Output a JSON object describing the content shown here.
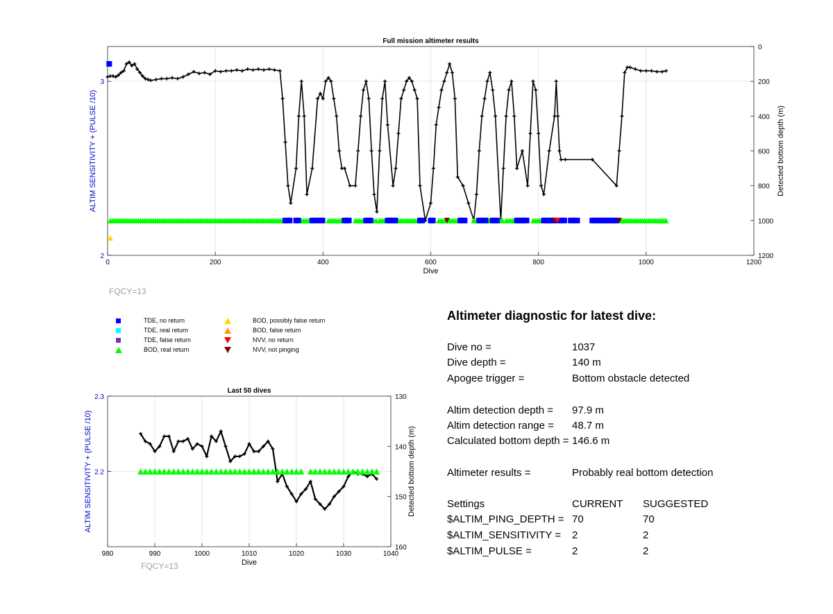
{
  "chart_data": [
    {
      "type": "scatter",
      "title": "Full mission altimeter results",
      "xlabel": "Dive",
      "ylabel_left": "ALTIM SENSITIVITY + (PULSE /10)",
      "ylabel_right": "Detected bottom depth (m)",
      "xlim": [
        0,
        1200
      ],
      "ylim_left": [
        2,
        3.2
      ],
      "ylim_right": [
        0,
        1200
      ],
      "right_axis_reversed": true,
      "xticks": [
        0,
        200,
        400,
        600,
        800,
        1000,
        1200
      ],
      "yticks_left": [
        2,
        3
      ],
      "yticks_right": [
        0,
        200,
        400,
        600,
        800,
        1000,
        1200
      ],
      "grid": true,
      "note": "FQCY=13",
      "series": [
        {
          "name": "Detected bottom depth",
          "axis": "right",
          "color": "#000000",
          "x": [
            0,
            5,
            10,
            15,
            20,
            25,
            30,
            35,
            40,
            45,
            50,
            55,
            60,
            65,
            70,
            75,
            80,
            90,
            100,
            110,
            120,
            130,
            140,
            150,
            160,
            170,
            180,
            190,
            200,
            210,
            220,
            230,
            240,
            250,
            260,
            270,
            280,
            290,
            300,
            310,
            320,
            325,
            330,
            335,
            340,
            350,
            355,
            360,
            365,
            370,
            380,
            390,
            395,
            400,
            405,
            410,
            415,
            420,
            425,
            430,
            435,
            440,
            450,
            460,
            465,
            470,
            475,
            480,
            485,
            490,
            495,
            500,
            505,
            510,
            515,
            520,
            530,
            535,
            540,
            545,
            550,
            555,
            560,
            565,
            570,
            575,
            580,
            590,
            600,
            605,
            610,
            615,
            620,
            625,
            630,
            635,
            640,
            645,
            650,
            660,
            670,
            680,
            685,
            690,
            695,
            700,
            705,
            710,
            715,
            720,
            730,
            735,
            740,
            745,
            750,
            755,
            760,
            770,
            780,
            785,
            790,
            795,
            800,
            805,
            810,
            820,
            830,
            833,
            836,
            839,
            842,
            850,
            900,
            945,
            950,
            955,
            960,
            965,
            970,
            980,
            990,
            1000,
            1010,
            1020,
            1030,
            1037
          ],
          "y": [
            175,
            170,
            170,
            175,
            165,
            150,
            140,
            100,
            90,
            110,
            100,
            130,
            150,
            170,
            185,
            190,
            195,
            190,
            185,
            185,
            180,
            185,
            175,
            160,
            145,
            155,
            150,
            160,
            140,
            145,
            140,
            140,
            135,
            140,
            130,
            135,
            130,
            135,
            130,
            135,
            140,
            300,
            550,
            800,
            900,
            700,
            400,
            200,
            400,
            850,
            700,
            300,
            270,
            300,
            200,
            180,
            200,
            300,
            400,
            600,
            700,
            700,
            800,
            800,
            600,
            400,
            250,
            200,
            300,
            600,
            850,
            950,
            600,
            300,
            200,
            450,
            800,
            700,
            500,
            300,
            250,
            200,
            180,
            200,
            250,
            300,
            800,
            1000,
            900,
            700,
            450,
            350,
            250,
            200,
            150,
            100,
            150,
            300,
            750,
            800,
            900,
            1000,
            850,
            600,
            400,
            300,
            200,
            150,
            250,
            400,
            1000,
            700,
            400,
            250,
            200,
            400,
            700,
            600,
            800,
            500,
            200,
            250,
            500,
            800,
            850,
            600,
            400,
            200,
            400,
            600,
            650,
            650,
            650,
            800,
            600,
            400,
            150,
            120,
            120,
            130,
            140,
            140,
            140,
            145,
            145,
            140
          ]
        },
        {
          "name": "BOD, real return",
          "axis": "left",
          "color": "#00ff00",
          "marker": "triangle",
          "x_ranges": [
            [
              5,
              330
            ],
            [
              355,
              375
            ],
            [
              410,
              440
            ],
            [
              460,
              480
            ],
            [
              495,
              500
            ],
            [
              505,
              515
            ],
            [
              540,
              580
            ],
            [
              600,
              605
            ],
            [
              615,
              655
            ],
            [
              680,
              690
            ],
            [
              705,
              710
            ],
            [
              725,
              735
            ],
            [
              740,
              760
            ],
            [
              790,
              805
            ],
            [
              825,
              840
            ],
            [
              945,
              1040
            ]
          ],
          "y": 2.2
        },
        {
          "name": "TDE, no return",
          "axis": "left",
          "color": "#0000ff",
          "marker": "square",
          "x_ranges": [
            [
              330,
              340
            ],
            [
              350,
              355
            ],
            [
              380,
              390
            ],
            [
              395,
              400
            ],
            [
              440,
              450
            ],
            [
              480,
              490
            ],
            [
              520,
              530
            ],
            [
              530,
              535
            ],
            [
              580,
              585
            ],
            [
              600,
              605
            ],
            [
              655,
              665
            ],
            [
              690,
              705
            ],
            [
              715,
              725
            ],
            [
              760,
              770
            ],
            [
              770,
              780
            ],
            [
              810,
              830
            ],
            [
              840,
              850
            ],
            [
              860,
              875
            ],
            [
              900,
              945
            ]
          ],
          "y": 2.2
        },
        {
          "name": "TDE, no return (start)",
          "axis": "left",
          "color": "#0000ff",
          "marker": "square",
          "x": [
            3
          ],
          "y": [
            3.1
          ]
        },
        {
          "name": "BOD, possibly false return",
          "axis": "left",
          "color": "#ffd700",
          "marker": "triangle",
          "x": [
            5
          ],
          "y": [
            2.1
          ]
        },
        {
          "name": "NVV, not pinging",
          "axis": "left",
          "color": "#800000",
          "marker": "triangle-down",
          "x": [
            630,
            830,
            950
          ],
          "y": [
            2.2,
            2.2,
            2.2
          ]
        },
        {
          "name": "NVV, no return",
          "axis": "left",
          "color": "#ff0000",
          "marker": "triangle-down",
          "x": [
            835
          ],
          "y": [
            2.2
          ]
        }
      ]
    },
    {
      "type": "scatter",
      "title": "Last 50 dives",
      "xlabel": "Dive",
      "ylabel_left": "ALTIM SENSITIVITY + (PULSE /10)",
      "ylabel_right": "Detected bottom depth (m)",
      "xlim": [
        980,
        1040
      ],
      "ylim_left": [
        2.1,
        2.3
      ],
      "ylim_right": [
        130,
        160
      ],
      "right_axis_reversed": true,
      "xticks": [
        980,
        990,
        1000,
        1010,
        1020,
        1030,
        1040
      ],
      "yticks_left": [
        2.2,
        2.3
      ],
      "yticks_right": [
        130,
        140,
        150,
        160
      ],
      "grid": true,
      "note": "FQCY=13",
      "series": [
        {
          "name": "Detected bottom depth",
          "axis": "right",
          "color": "#000000",
          "x": [
            987,
            988,
            989,
            990,
            991,
            992,
            993,
            994,
            995,
            996,
            997,
            998,
            999,
            1000,
            1001,
            1002,
            1003,
            1004,
            1005,
            1006,
            1007,
            1008,
            1009,
            1010,
            1011,
            1012,
            1013,
            1014,
            1015,
            1016,
            1017,
            1018,
            1019,
            1020,
            1021,
            1022,
            1023,
            1024,
            1025,
            1026,
            1027,
            1028,
            1029,
            1030,
            1031,
            1032,
            1033,
            1034,
            1035,
            1036,
            1037
          ],
          "y": [
            137.5,
            139,
            139.5,
            141,
            140,
            138,
            138,
            141,
            139,
            139,
            138.5,
            140.5,
            139.5,
            140,
            142,
            138,
            139,
            137,
            140,
            143,
            142,
            142,
            141.5,
            139.5,
            141,
            141,
            140,
            139,
            140.5,
            147,
            145.5,
            148,
            149.5,
            151,
            149.5,
            148.5,
            147,
            150.5,
            151.5,
            152.5,
            151.5,
            150,
            149,
            148,
            146,
            145,
            145.5,
            145.5,
            146,
            145.5,
            146.5
          ]
        },
        {
          "name": "BOD, real return",
          "axis": "left",
          "color": "#00ff00",
          "marker": "triangle",
          "x": [
            987,
            988,
            989,
            990,
            991,
            992,
            993,
            994,
            995,
            996,
            997,
            998,
            999,
            1000,
            1001,
            1002,
            1003,
            1004,
            1005,
            1006,
            1007,
            1008,
            1009,
            1010,
            1011,
            1012,
            1013,
            1014,
            1015,
            1016,
            1017,
            1018,
            1019,
            1020,
            1021,
            1023,
            1024,
            1025,
            1026,
            1027,
            1028,
            1029,
            1030,
            1031,
            1032,
            1033,
            1034,
            1035,
            1036,
            1037
          ],
          "y": 2.2
        }
      ]
    }
  ],
  "legend": [
    {
      "label": "TDE, no return",
      "color": "#0000ff",
      "marker": "square"
    },
    {
      "label": "TDE, real return",
      "color": "#00ffff",
      "marker": "square"
    },
    {
      "label": "TDE, false return",
      "color": "#7b2fbe",
      "marker": "square"
    },
    {
      "label": "BOD, real return",
      "color": "#00ff00",
      "marker": "triangle"
    },
    {
      "label": "BOD, possibly false return",
      "color": "#ffd700",
      "marker": "triangle"
    },
    {
      "label": "BOD, false return",
      "color": "#ff9900",
      "marker": "triangle"
    },
    {
      "label": "NVV, no return",
      "color": "#ff0000",
      "marker": "triangle-down"
    },
    {
      "label": "NVV, not pinging",
      "color": "#800000",
      "marker": "triangle-down"
    }
  ],
  "diagnostic": {
    "title": "Altimeter diagnostic for latest dive:",
    "dive_no_label": "Dive no =",
    "dive_no": "1037",
    "dive_depth_label": "Dive depth =",
    "dive_depth": "140 m",
    "apogee_label": "Apogee trigger =",
    "apogee": "Bottom obstacle detected",
    "altim_det_depth_label": "Altim detection depth =",
    "altim_det_depth": "97.9 m",
    "altim_det_range_label": "Altim detection range =",
    "altim_det_range": "48.7 m",
    "calc_bottom_label": "Calculated bottom depth =",
    "calc_bottom": "146.6 m",
    "results_label": "Altimeter results =",
    "results": "Probably real bottom detection",
    "settings_label": "Settings",
    "current_label": "CURRENT",
    "suggested_label": "SUGGESTED",
    "settings": [
      {
        "name": "$ALTIM_PING_DEPTH =",
        "current": "70",
        "suggested": "70"
      },
      {
        "name": "$ALTIM_SENSITIVITY =",
        "current": "2",
        "suggested": "2"
      },
      {
        "name": "$ALTIM_PULSE =",
        "current": "2",
        "suggested": "2"
      }
    ]
  }
}
